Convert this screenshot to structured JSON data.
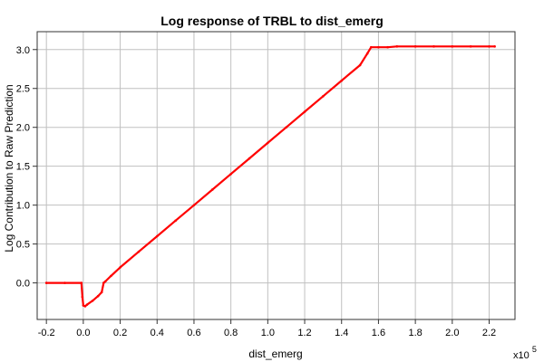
{
  "chart_data": {
    "type": "line",
    "title": "Log response of TRBL to dist_emerg",
    "xlabel": "dist_emerg",
    "ylabel": "Log Contribution to Raw Prediction",
    "x_multiplier_base": "x10",
    "x_multiplier_exp": "5",
    "xlim": [
      -0.25,
      2.34
    ],
    "ylim": [
      -0.47,
      3.23
    ],
    "x_ticks": [
      -0.2,
      0,
      0.2,
      0.4,
      0.6,
      0.8,
      1.0,
      1.2,
      1.4,
      1.6,
      1.8,
      2.0,
      2.2
    ],
    "x_tick_labels": [
      "-0.2",
      "0.0",
      "0.2",
      "0.4",
      "0.6",
      "0.8",
      "1.0",
      "1.2",
      "1.4",
      "1.6",
      "1.8",
      "2.0",
      "2.2"
    ],
    "y_ticks": [
      0,
      0.5,
      1.0,
      1.5,
      2.0,
      2.5,
      3.0
    ],
    "y_tick_labels": [
      "0.0",
      "0.5",
      "1.0",
      "1.5",
      "2.0",
      "2.5",
      "3.0"
    ],
    "grid": true,
    "line_color": "#ff0000",
    "series": [
      {
        "x": [
          -0.2,
          -0.1,
          -0.01,
          -0.005,
          0.0,
          0.01,
          0.02,
          0.05,
          0.08,
          0.1,
          0.11,
          0.12,
          0.15,
          0.2,
          0.3,
          0.4,
          0.5,
          0.6,
          0.7,
          0.8,
          0.9,
          1.0,
          1.1,
          1.2,
          1.3,
          1.4,
          1.5,
          1.54,
          1.56,
          1.6,
          1.65,
          1.7,
          1.8,
          1.9,
          2.0,
          2.1,
          2.2,
          2.23
        ],
        "y": [
          0.0,
          0.0,
          0.0,
          -0.18,
          -0.29,
          -0.3,
          -0.28,
          -0.23,
          -0.17,
          -0.12,
          0.0,
          0.02,
          0.09,
          0.2,
          0.4,
          0.6,
          0.8,
          1.0,
          1.2,
          1.4,
          1.6,
          1.8,
          2.0,
          2.2,
          2.4,
          2.6,
          2.8,
          2.95,
          3.03,
          3.03,
          3.03,
          3.04,
          3.04,
          3.04,
          3.04,
          3.04,
          3.04,
          3.04
        ]
      }
    ]
  }
}
